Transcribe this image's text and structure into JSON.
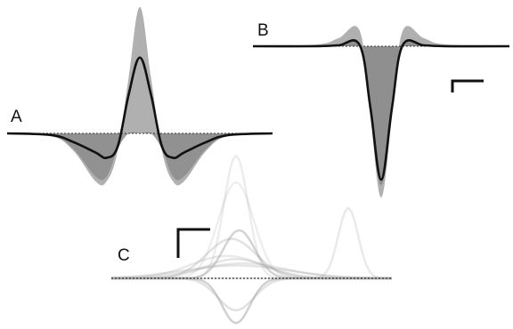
{
  "colors": {
    "trace": "#111111",
    "fill_positive": "#b0b0b0",
    "fill_negative": "#8c8c8c",
    "overlay": "#a8a8a8",
    "baseline_dotted": "#333333",
    "scalebar": "#111111"
  },
  "chart_data": [
    {
      "type": "area",
      "panel_label": "A",
      "title": "",
      "xlabel": "",
      "ylabel": "",
      "grid": false,
      "legend": "none",
      "series": [
        {
          "role": "shaded-envelope",
          "x": [
            -6,
            -4,
            -3,
            -2,
            -1.5,
            -1,
            -0.5,
            0,
            0.5,
            1,
            1.5,
            2,
            3,
            4,
            6
          ],
          "y": [
            0,
            -0.03,
            -0.2,
            -0.55,
            -0.55,
            -0.2,
            0.65,
            1.45,
            0.65,
            -0.2,
            -0.55,
            -0.55,
            -0.2,
            -0.03,
            0
          ]
        },
        {
          "role": "mean-trace",
          "x": [
            -6,
            -4,
            -3,
            -2,
            -1.5,
            -1,
            -0.5,
            0,
            0.5,
            1,
            1.5,
            2,
            3,
            4,
            6
          ],
          "y": [
            0,
            -0.02,
            -0.1,
            -0.22,
            -0.28,
            -0.15,
            0.45,
            0.87,
            0.45,
            -0.15,
            -0.28,
            -0.22,
            -0.1,
            -0.02,
            0
          ]
        }
      ]
    },
    {
      "type": "area",
      "panel_label": "B",
      "title": "",
      "xlabel": "",
      "ylabel": "",
      "grid": false,
      "legend": "none",
      "series": [
        {
          "role": "shaded-envelope",
          "x": [
            -6,
            -3,
            -2,
            -1,
            -0.5,
            0,
            0.5,
            1,
            2,
            3,
            6
          ],
          "y": [
            0,
            0.02,
            0.09,
            0.17,
            -0.8,
            -1.7,
            -0.8,
            0.17,
            0.09,
            0.02,
            0
          ]
        },
        {
          "role": "mean-trace",
          "x": [
            -6,
            -3,
            -2,
            -1,
            -0.5,
            0,
            0.5,
            1,
            2,
            3,
            6
          ],
          "y": [
            0,
            0,
            0.01,
            0.01,
            -0.7,
            -1.5,
            -0.7,
            0.01,
            0.01,
            0,
            0
          ]
        }
      ]
    },
    {
      "type": "line",
      "panel_label": "C",
      "title": "",
      "xlabel": "",
      "ylabel": "",
      "grid": false,
      "legend": "none",
      "overlaid_traces": [
        {
          "x0": 0,
          "amp": 1.15,
          "width": 0.55,
          "dip": 0.0,
          "opacity": 0.22
        },
        {
          "x0": 0,
          "amp": 0.95,
          "width": 0.8,
          "dip": -0.05,
          "opacity": 0.2
        },
        {
          "x0": -0.15,
          "amp": 0.45,
          "width": 1.1,
          "dip": -0.08,
          "opacity": 0.35
        },
        {
          "x0": 0.1,
          "amp": 0.55,
          "width": 0.7,
          "dip": -0.1,
          "opacity": 0.5
        },
        {
          "x0": 0,
          "amp": 0.3,
          "width": 1.3,
          "dip": -0.12,
          "opacity": 0.3
        },
        {
          "x0": -0.3,
          "amp": 0.25,
          "width": 1.6,
          "dip": -0.04,
          "opacity": 0.25
        },
        {
          "x0": 0.2,
          "amp": 0.2,
          "width": 1.9,
          "dip": -0.06,
          "opacity": 0.28
        },
        {
          "x0": 0,
          "amp": 0.0,
          "width": 0.7,
          "dip": -0.42,
          "opacity": 0.55
        },
        {
          "x0": 0,
          "amp": 0.0,
          "width": 0.9,
          "dip": -0.3,
          "opacity": 0.35
        },
        {
          "x0": 0,
          "amp": 0.12,
          "width": 2.4,
          "dip": 0.0,
          "opacity": 0.3
        },
        {
          "x0": 3.6,
          "amp": 0.66,
          "width": 0.45,
          "dip": 0.0,
          "opacity": 0.25
        }
      ]
    }
  ]
}
